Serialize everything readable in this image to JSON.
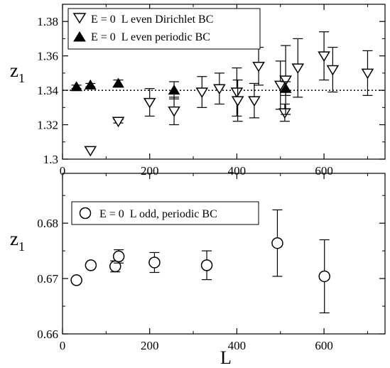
{
  "chart_data": [
    {
      "type": "scatter",
      "title": "",
      "xlabel": "",
      "ylabel": "z",
      "ylabel_sub": "1",
      "xlim": [
        0,
        740
      ],
      "ylim": [
        1.3,
        1.39
      ],
      "x_ticks": [
        0,
        200,
        400,
        600
      ],
      "x_tick_labels": [
        "0",
        "200",
        "400",
        "600"
      ],
      "y_ticks": [
        1.3,
        1.32,
        1.34,
        1.36,
        1.38
      ],
      "y_tick_labels": [
        "1.3",
        "1.32",
        "1.34",
        "1.36",
        "1.38"
      ],
      "grid": false,
      "legend_position": "top-left",
      "reference_line": {
        "y": 1.34,
        "style": "dotted"
      },
      "series": [
        {
          "name": "E = 0  L even Dirichlet BC",
          "marker": "open-down-triangle",
          "points": [
            {
              "x": 64,
              "y": 1.305,
              "err": 0.0
            },
            {
              "x": 128,
              "y": 1.322,
              "err": 0.001
            },
            {
              "x": 200,
              "y": 1.333,
              "err": 0.008
            },
            {
              "x": 256,
              "y": 1.328,
              "err": 0.008
            },
            {
              "x": 320,
              "y": 1.339,
              "err": 0.009
            },
            {
              "x": 360,
              "y": 1.341,
              "err": 0.009
            },
            {
              "x": 400,
              "y": 1.339,
              "err": 0.014
            },
            {
              "x": 402,
              "y": 1.334,
              "err": 0.012
            },
            {
              "x": 440,
              "y": 1.334,
              "err": 0.01
            },
            {
              "x": 450,
              "y": 1.354,
              "err": 0.011
            },
            {
              "x": 500,
              "y": 1.343,
              "err": 0.014
            },
            {
              "x": 510,
              "y": 1.327,
              "err": 0.005
            },
            {
              "x": 512,
              "y": 1.346,
              "err": 0.02
            },
            {
              "x": 540,
              "y": 1.353,
              "err": 0.017
            },
            {
              "x": 600,
              "y": 1.36,
              "err": 0.014
            },
            {
              "x": 620,
              "y": 1.352,
              "err": 0.013
            },
            {
              "x": 700,
              "y": 1.35,
              "err": 0.013
            }
          ]
        },
        {
          "name": "E = 0  L even periodic BC",
          "marker": "filled-up-triangle",
          "points": [
            {
              "x": 32,
              "y": 1.342,
              "err": 0.001
            },
            {
              "x": 64,
              "y": 1.343,
              "err": 0.001
            },
            {
              "x": 128,
              "y": 1.344,
              "err": 0.002
            },
            {
              "x": 256,
              "y": 1.34,
              "err": 0.005
            },
            {
              "x": 512,
              "y": 1.341,
              "err": 0.004
            }
          ]
        }
      ]
    },
    {
      "type": "scatter",
      "title": "",
      "xlabel": "L",
      "ylabel": "z",
      "ylabel_sub": "1",
      "xlim": [
        0,
        740
      ],
      "ylim": [
        0.66,
        0.689
      ],
      "x_ticks": [
        0,
        200,
        400,
        600
      ],
      "x_tick_labels": [
        "0",
        "200",
        "400",
        "600"
      ],
      "y_ticks": [
        0.66,
        0.67,
        0.68
      ],
      "y_tick_labels": [
        "0.66",
        "0.67",
        "0.68"
      ],
      "grid": false,
      "legend_position": "top-left",
      "series": [
        {
          "name": "E = 0  L odd, periodic BC",
          "marker": "open-circle",
          "points": [
            {
              "x": 32,
              "y": 0.6697,
              "err": 0.0
            },
            {
              "x": 65,
              "y": 0.6724,
              "err": 0.0
            },
            {
              "x": 121,
              "y": 0.6722,
              "err": 0.001
            },
            {
              "x": 129,
              "y": 0.674,
              "err": 0.0012
            },
            {
              "x": 211,
              "y": 0.6729,
              "err": 0.0018
            },
            {
              "x": 331,
              "y": 0.6724,
              "err": 0.0026
            },
            {
              "x": 493,
              "y": 0.6764,
              "err": 0.006
            },
            {
              "x": 601,
              "y": 0.6704,
              "err": 0.0066
            }
          ]
        }
      ]
    }
  ]
}
